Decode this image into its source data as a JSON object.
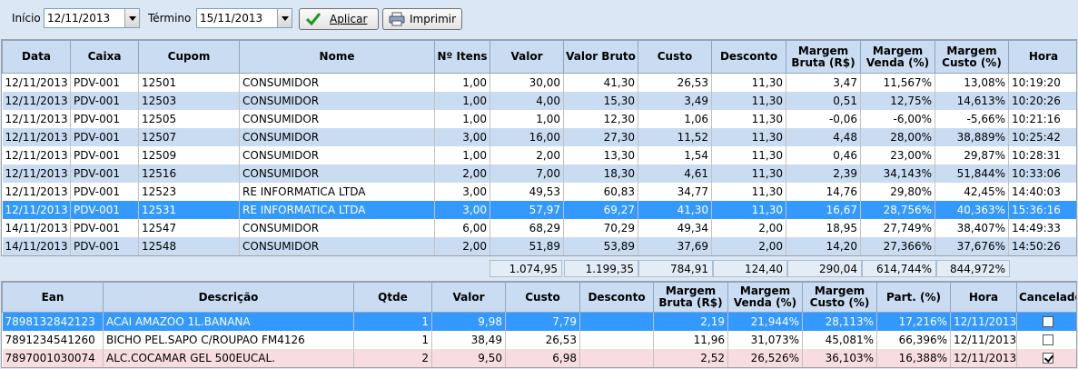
{
  "toolbar": {
    "start_label": "Início",
    "start_value": "12/11/2013",
    "end_label": "Término",
    "end_value": "15/11/2013",
    "apply_label": "Aplicar",
    "print_label": "Imprimir"
  },
  "sales": {
    "headers": [
      "Data",
      "Caixa",
      "Cupom",
      "Nome",
      "Nº Itens",
      "Valor",
      "Valor Bruto",
      "Custo",
      "Desconto",
      "Margem Bruta (R$)",
      "Margem Venda (%)",
      "Margem Custo (%)",
      "Hora"
    ],
    "rows": [
      [
        "12/11/2013",
        "PDV-001",
        "12501",
        "CONSUMIDOR",
        "1,00",
        "30,00",
        "41,30",
        "26,53",
        "11,30",
        "3,47",
        "11,567%",
        "13,08%",
        "10:19:20"
      ],
      [
        "12/11/2013",
        "PDV-001",
        "12503",
        "CONSUMIDOR",
        "1,00",
        "4,00",
        "15,30",
        "3,49",
        "11,30",
        "0,51",
        "12,75%",
        "14,613%",
        "10:20:26"
      ],
      [
        "12/11/2013",
        "PDV-001",
        "12505",
        "CONSUMIDOR",
        "1,00",
        "1,00",
        "12,30",
        "1,06",
        "11,30",
        "-0,06",
        "-6,00%",
        "-5,66%",
        "10:21:16"
      ],
      [
        "12/11/2013",
        "PDV-001",
        "12507",
        "CONSUMIDOR",
        "3,00",
        "16,00",
        "27,30",
        "11,52",
        "11,30",
        "4,48",
        "28,00%",
        "38,889%",
        "10:25:42"
      ],
      [
        "12/11/2013",
        "PDV-001",
        "12509",
        "CONSUMIDOR",
        "1,00",
        "2,00",
        "13,30",
        "1,54",
        "11,30",
        "0,46",
        "23,00%",
        "29,87%",
        "10:28:31"
      ],
      [
        "12/11/2013",
        "PDV-001",
        "12516",
        "CONSUMIDOR",
        "2,00",
        "7,00",
        "18,30",
        "4,61",
        "11,30",
        "2,39",
        "34,143%",
        "51,844%",
        "10:33:06"
      ],
      [
        "12/11/2013",
        "PDV-001",
        "12523",
        "RE INFORMATICA LTDA",
        "3,00",
        "49,53",
        "60,83",
        "34,77",
        "11,30",
        "14,76",
        "29,80%",
        "42,45%",
        "14:40:03"
      ],
      [
        "12/11/2013",
        "PDV-001",
        "12531",
        "RE INFORMATICA LTDA",
        "3,00",
        "57,97",
        "69,27",
        "41,30",
        "11,30",
        "16,67",
        "28,756%",
        "40,363%",
        "15:36:16"
      ],
      [
        "14/11/2013",
        "PDV-001",
        "12547",
        "CONSUMIDOR",
        "6,00",
        "68,29",
        "70,29",
        "49,34",
        "2,00",
        "18,95",
        "27,749%",
        "38,407%",
        "14:49:33"
      ],
      [
        "14/11/2013",
        "PDV-001",
        "12548",
        "CONSUMIDOR",
        "2,00",
        "51,89",
        "53,89",
        "37,69",
        "2,00",
        "14,20",
        "27,366%",
        "37,676%",
        "14:50:26"
      ]
    ],
    "selected_index": 7
  },
  "totals": {
    "valor": "1.074,95",
    "valor_bruto": "1.199,35",
    "custo": "784,91",
    "desconto": "124,40",
    "margem_bruta": "290,04",
    "margem_venda": "614,744%",
    "margem_custo": "844,972%"
  },
  "items": {
    "headers": [
      "Ean",
      "Descrição",
      "Qtde",
      "Valor",
      "Custo",
      "Desconto",
      "Margem Bruta (R$)",
      "Margem Venda (%)",
      "Margem Custo (%)",
      "Part. (%)",
      "Hora",
      "Cancelado"
    ],
    "rows": [
      {
        "cells": [
          "7898132842123",
          "ACAI AMAZOO 1L.BANANA",
          "1",
          "9,98",
          "7,79",
          "",
          "2,19",
          "21,944%",
          "28,113%",
          "17,216%",
          "12/11/2013"
        ],
        "cancelado": false,
        "state": "sel"
      },
      {
        "cells": [
          "7891234541260",
          "BICHO PEL.SAPO C/ROUPAO FM4126",
          "1",
          "38,49",
          "26,53",
          "",
          "11,96",
          "31,073%",
          "45,081%",
          "66,396%",
          "12/11/2013"
        ],
        "cancelado": false,
        "state": "odd"
      },
      {
        "cells": [
          "7897001030074",
          "ALC.COCAMAR GEL 500EUCAL.",
          "2",
          "9,50",
          "6,98",
          "",
          "2,52",
          "26,526%",
          "36,103%",
          "16,388%",
          "12/11/2013"
        ],
        "cancelado": true,
        "state": "cancel"
      }
    ]
  },
  "colors": {
    "header_bg": "#c9dcf2",
    "row_alt": "#c9dcf2",
    "selection": "#3399ff",
    "cancelled_row": "#f8dde0",
    "apply_icon": "#1a9a1a"
  }
}
